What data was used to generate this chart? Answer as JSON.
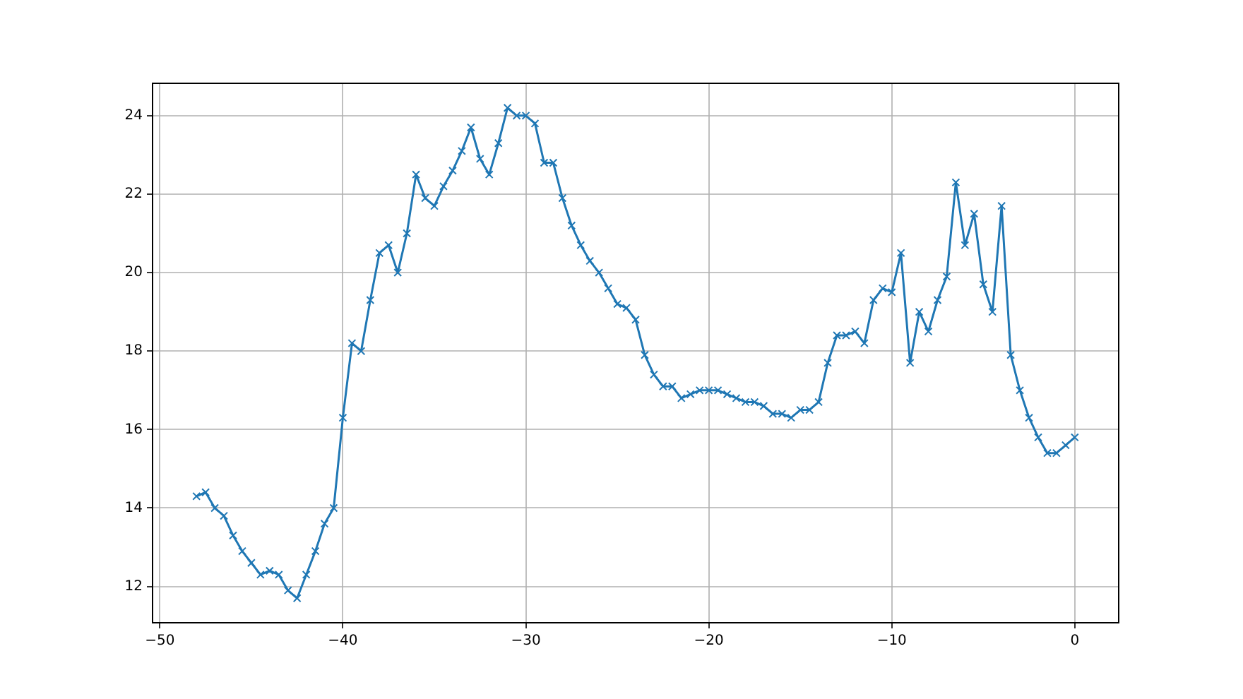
{
  "chart_data": {
    "type": "line",
    "color": "#1f77b4",
    "marker": "cross",
    "grid": true,
    "x": [
      -48,
      -47.5,
      -47,
      -46.5,
      -46,
      -45.5,
      -45,
      -44.5,
      -44,
      -43.5,
      -43,
      -42.5,
      -42,
      -41.5,
      -41,
      -40.5,
      -40,
      -39.5,
      -39,
      -38.5,
      -38,
      -37.5,
      -37,
      -36.5,
      -36,
      -35.5,
      -35,
      -34.5,
      -34,
      -33.5,
      -33,
      -32.5,
      -32,
      -31.5,
      -31,
      -30.5,
      -30,
      -29.5,
      -29,
      -28.5,
      -28,
      -27.5,
      -27,
      -26.5,
      -26,
      -25.5,
      -25,
      -24.5,
      -24,
      -23.5,
      -23,
      -22.5,
      -22,
      -21.5,
      -21,
      -20.5,
      -20,
      -19.5,
      -19,
      -18.5,
      -18,
      -17.5,
      -17,
      -16.5,
      -16,
      -15.5,
      -15,
      -14.5,
      -14,
      -13.5,
      -13,
      -12.5,
      -12,
      -11.5,
      -11,
      -10.5,
      -10,
      -9.5,
      -9,
      -8.5,
      -8,
      -7.5,
      -7,
      -6.5,
      -6,
      -5.5,
      -5,
      -4.5,
      -4,
      -3.5,
      -3,
      -2.5,
      -2,
      -1.5,
      -1,
      -0.5,
      0
    ],
    "values": [
      14.3,
      14.4,
      14.0,
      13.8,
      13.3,
      12.9,
      12.6,
      12.3,
      12.4,
      12.3,
      11.9,
      11.7,
      12.3,
      12.9,
      13.6,
      14.0,
      16.3,
      18.2,
      18.0,
      19.3,
      20.5,
      20.7,
      20.0,
      21.0,
      22.5,
      21.9,
      21.7,
      22.2,
      22.6,
      23.1,
      23.7,
      22.9,
      22.5,
      23.3,
      24.2,
      24.0,
      24.0,
      23.8,
      22.8,
      22.8,
      21.9,
      21.2,
      20.7,
      20.3,
      20.0,
      19.6,
      19.2,
      19.1,
      18.8,
      17.9,
      17.4,
      17.1,
      17.1,
      16.8,
      16.9,
      17.0,
      17.0,
      17.0,
      16.9,
      16.8,
      16.7,
      16.7,
      16.6,
      16.4,
      16.4,
      16.3,
      16.5,
      16.5,
      16.7,
      17.7,
      18.4,
      18.4,
      18.5,
      18.2,
      19.3,
      19.6,
      19.5,
      20.5,
      17.7,
      19.0,
      18.5,
      19.3,
      19.9,
      22.3,
      20.7,
      21.5,
      19.7,
      19.0,
      21.7,
      17.9,
      17.0,
      16.3,
      15.8,
      15.4,
      15.4,
      15.6,
      15.8
    ],
    "xlim": [
      -50.4,
      2.4
    ],
    "ylim": [
      11.075,
      24.825
    ],
    "xticks": [
      -50,
      -40,
      -30,
      -20,
      -10,
      0
    ],
    "yticks": [
      12,
      14,
      16,
      18,
      20,
      22,
      24
    ]
  }
}
